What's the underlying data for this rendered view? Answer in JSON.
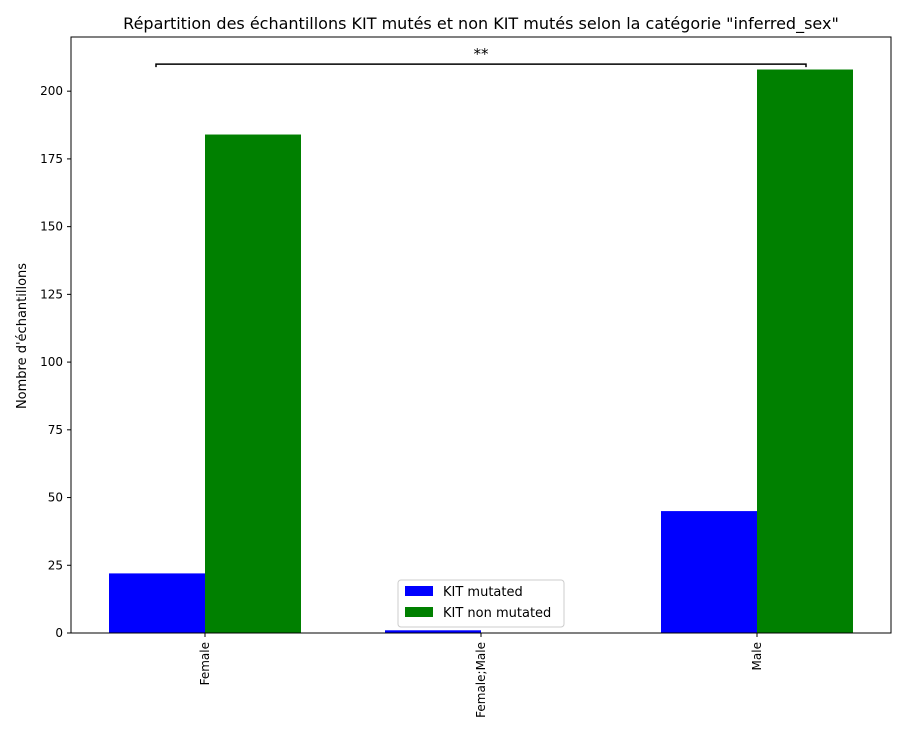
{
  "chart_data": {
    "type": "bar",
    "title": "Répartition des échantillons KIT mutés et non KIT mutés selon la catégorie \"inferred_sex\"",
    "xlabel": "",
    "ylabel": "Nombre d'échantillons",
    "categories": [
      "Female",
      "Female;Male",
      "Male"
    ],
    "series": [
      {
        "name": "KIT mutated",
        "values": [
          22,
          1,
          45
        ],
        "color": "#0000ff"
      },
      {
        "name": "KIT non mutated",
        "values": [
          184,
          0,
          208
        ],
        "color": "#008000"
      }
    ],
    "ylim": [
      0,
      220
    ],
    "yticks": [
      0,
      25,
      50,
      75,
      100,
      125,
      150,
      175,
      200
    ],
    "grid": false,
    "legend_position": "bottom-center",
    "significance": {
      "label": "**",
      "from_category": "Female",
      "to_category": "Male",
      "level": 210
    }
  }
}
